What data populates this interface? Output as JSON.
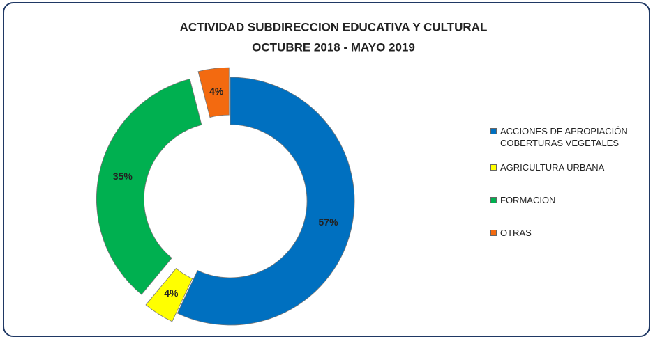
{
  "chart_data": {
    "type": "donut",
    "title": "ACTIVIDAD SUBDIRECCION EDUCATIVA Y CULTURAL",
    "subtitle": "OCTUBRE 2018 - MAYO 2019",
    "categories": [
      "ACCIONES DE APROPIACIÓN COBERTURAS VEGETALES",
      "AGRICULTURA URBANA",
      "FORMACION",
      "OTRAS"
    ],
    "values": [
      57,
      4,
      35,
      4
    ],
    "value_labels": [
      "57%",
      "4%",
      "35%",
      "4%"
    ],
    "colors": [
      "#0070c0",
      "#ffff00",
      "#00b050",
      "#f36a10"
    ],
    "legend": "right"
  }
}
